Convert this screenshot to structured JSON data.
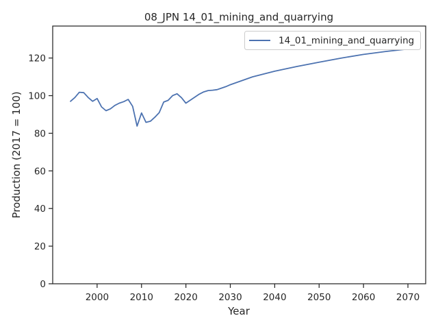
{
  "chart_data": {
    "type": "line",
    "title": "08_JPN 14_01_mining_and_quarrying",
    "xlabel": "Year",
    "ylabel": "Production (2017 = 100)",
    "xlim": [
      1990,
      2074
    ],
    "ylim": [
      0,
      137
    ],
    "xticks": [
      2000,
      2010,
      2020,
      2030,
      2040,
      2050,
      2060,
      2070
    ],
    "yticks": [
      0,
      20,
      40,
      60,
      80,
      100,
      120
    ],
    "grid": false,
    "legend_position": "top-right",
    "series": [
      {
        "name": "14_01_mining_and_quarrying",
        "color": "#4c72b0",
        "x": [
          1994,
          1995,
          1996,
          1997,
          1998,
          1999,
          2000,
          2001,
          2002,
          2003,
          2004,
          2005,
          2006,
          2007,
          2008,
          2009,
          2010,
          2011,
          2012,
          2013,
          2014,
          2015,
          2016,
          2017,
          2018,
          2019,
          2020,
          2021,
          2022,
          2023,
          2024,
          2025,
          2026,
          2027,
          2028,
          2029,
          2030,
          2035,
          2040,
          2045,
          2050,
          2055,
          2060,
          2065,
          2070
        ],
        "y": [
          97,
          99,
          101.8,
          101.6,
          99,
          97,
          98.5,
          94,
          92,
          93,
          94.8,
          96,
          96.8,
          98,
          94.3,
          83.8,
          90.8,
          85.8,
          86.4,
          88.5,
          91,
          96.6,
          97.5,
          100,
          101,
          98.9,
          96,
          97.6,
          99.2,
          100.8,
          102,
          102.7,
          102.9,
          103.2,
          104,
          104.8,
          105.8,
          110,
          113,
          115.5,
          117.8,
          120,
          121.9,
          123.5,
          124.8
        ]
      }
    ]
  }
}
